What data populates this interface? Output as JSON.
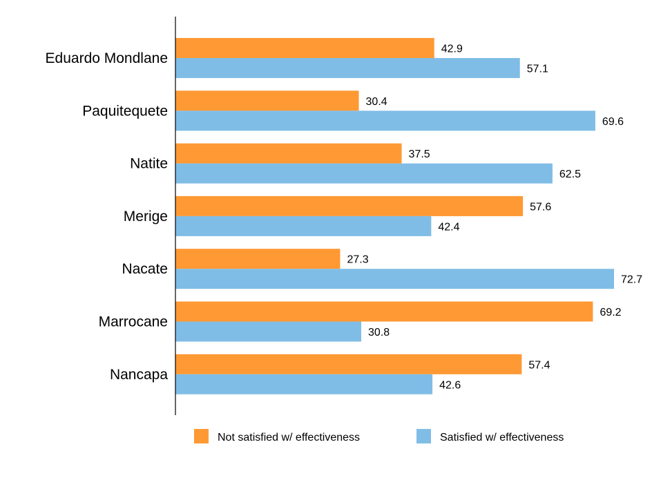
{
  "chart_data": {
    "type": "bar",
    "orientation": "horizontal",
    "categories": [
      "Eduardo Mondlane",
      "Paquitequete",
      "Natite",
      "Merige",
      "Nacate",
      "Marrocane",
      "Nancapa"
    ],
    "series": [
      {
        "name": "Not satisfied w/ effectiveness",
        "color": "#ff9933",
        "values": [
          42.9,
          30.4,
          37.5,
          57.6,
          27.3,
          69.2,
          57.4
        ]
      },
      {
        "name": "Satisfied w/ effectiveness",
        "color": "#80bde6",
        "values": [
          57.1,
          69.6,
          62.5,
          42.4,
          72.7,
          30.8,
          42.6
        ]
      }
    ],
    "xlim": [
      0,
      73.5
    ],
    "grid": false,
    "legend_position": "bottom",
    "data_labels": true
  }
}
